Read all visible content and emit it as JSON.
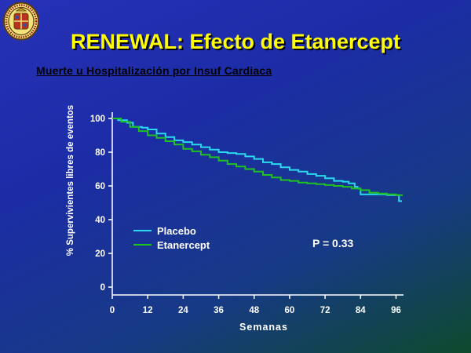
{
  "title": "RENEWAL: Efecto de Etanercept",
  "subtitle": "Muerte u Hospitalización por Insuf Cardiaca",
  "p_value": "P = 0.33",
  "colors": {
    "title": "#ffff00",
    "placebo": "#29d9ee",
    "etanercept": "#1fc21f"
  },
  "chart_data": {
    "type": "line",
    "xlabel": "Semanas",
    "ylabel": "% Supervivientes libres de eventos",
    "xlim": [
      0,
      98
    ],
    "ylim": [
      0,
      100
    ],
    "x_ticks": [
      0,
      12,
      24,
      36,
      48,
      60,
      72,
      84,
      96
    ],
    "y_ticks": [
      0,
      20,
      40,
      60,
      80,
      100
    ],
    "grid": false,
    "legend_position": "bottom-left",
    "series": [
      {
        "name": "Placebo",
        "x": [
          0,
          2,
          5,
          7,
          10,
          12,
          15,
          18,
          21,
          24,
          27,
          30,
          33,
          36,
          39,
          42,
          45,
          48,
          51,
          54,
          57,
          60,
          63,
          66,
          69,
          72,
          75,
          78,
          80,
          82,
          83,
          84,
          85,
          87,
          90,
          93,
          96,
          97,
          98
        ],
        "y": [
          100,
          99,
          97.5,
          95,
          94.5,
          93.5,
          91,
          89,
          87,
          86,
          84.5,
          83,
          81.5,
          80,
          79.5,
          79,
          77.5,
          76,
          74,
          73,
          71,
          69.5,
          68.5,
          67,
          66,
          64.5,
          63,
          62.5,
          61.5,
          59.5,
          58.5,
          55,
          55,
          55,
          55,
          54.5,
          54.5,
          51,
          51
        ]
      },
      {
        "name": "Etanercept",
        "x": [
          0,
          3,
          6,
          9,
          12,
          15,
          18,
          21,
          24,
          27,
          30,
          33,
          36,
          39,
          42,
          45,
          48,
          51,
          54,
          57,
          60,
          63,
          66,
          69,
          72,
          75,
          78,
          81,
          84,
          87,
          90,
          93,
          96,
          98
        ],
        "y": [
          100,
          98,
          95,
          92.5,
          90,
          88.5,
          86.5,
          84.5,
          82,
          80.5,
          78.5,
          77,
          75,
          73,
          71.5,
          70,
          68.5,
          66.5,
          65,
          63.5,
          63,
          62,
          61.5,
          61,
          60.5,
          60,
          59.5,
          58.5,
          57.5,
          56,
          55.5,
          55,
          54.5,
          54
        ]
      }
    ]
  }
}
